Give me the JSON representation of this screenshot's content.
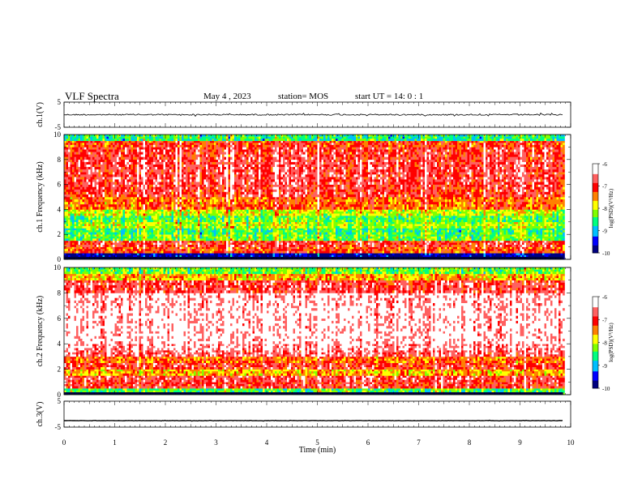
{
  "header": {
    "title": "VLF Spectra",
    "date": "May 4 , 2023",
    "station": "station= MOS",
    "start": "start UT = 14: 0 : 1"
  },
  "colors": {
    "background": "#ffffff",
    "axes": "#000000",
    "colormap": [
      "#000080",
      "#0000ff",
      "#00bfff",
      "#00ff80",
      "#80ff00",
      "#ffff00",
      "#ff8000",
      "#ff0000",
      "#ff6060",
      "#ffffff"
    ]
  },
  "chart_data": [
    {
      "type": "line",
      "panel": "ch1-waveform",
      "ylabel": "ch.1(V)",
      "yticks": [
        "5",
        "-5"
      ],
      "ylim": [
        -5,
        5
      ],
      "xlim": [
        0,
        10
      ],
      "series": [
        {
          "x": [
            0,
            9.85
          ],
          "y": [
            0,
            0
          ]
        }
      ]
    },
    {
      "type": "heatmap",
      "panel": "ch1-spectrogram",
      "ylabel": "ch.1 Frequency (kHz)",
      "yticks": [
        "0",
        "2",
        "4",
        "6",
        "8",
        "10"
      ],
      "ylim": [
        0,
        10
      ],
      "xlim": [
        0,
        10
      ],
      "data_end_min": 9.85,
      "frequency_bands_khz": [
        0,
        0.5,
        1,
        1.5,
        2,
        2.5,
        3,
        3.5,
        4,
        5,
        6,
        7,
        8,
        9,
        9.5,
        10
      ],
      "band_log_psd": [
        -9.8,
        -7.2,
        -6.9,
        -8.3,
        -8.5,
        -8.1,
        -8.4,
        -8.0,
        -7.3,
        -6.9,
        -6.8,
        -6.8,
        -6.9,
        -7.1,
        -8.6
      ],
      "colorbar": {
        "label": "log(PSD)(V²/Hz)",
        "ticks": [
          "-6",
          "-7",
          "-8",
          "-9",
          "-10"
        ],
        "range": [
          -10,
          -6
        ]
      }
    },
    {
      "type": "heatmap",
      "panel": "ch2-spectrogram",
      "ylabel": "ch.2 Frequency (kHz)",
      "yticks": [
        "0",
        "2",
        "4",
        "6",
        "8",
        "10"
      ],
      "ylim": [
        0,
        10
      ],
      "xlim": [
        0,
        10
      ],
      "data_end_min": 9.85,
      "frequency_bands_khz": [
        0,
        0.5,
        1,
        1.5,
        2,
        2.5,
        3,
        3.5,
        4,
        5,
        6,
        7,
        8,
        9,
        9.5,
        10
      ],
      "band_log_psd": [
        -8.4,
        -6.9,
        -6.8,
        -7.6,
        -6.9,
        -7.3,
        -6.6,
        -6.4,
        -6.2,
        -6.2,
        -6.2,
        -6.3,
        -6.8,
        -7.6,
        -8.3
      ],
      "colorbar": {
        "label": "log(PSD)(V²/Hz)",
        "ticks": [
          "-6",
          "-7",
          "-8",
          "-9",
          "-10"
        ],
        "range": [
          -10,
          -6
        ]
      }
    },
    {
      "type": "line",
      "panel": "ch3-waveform",
      "ylabel": "ch.3(V)",
      "yticks": [
        "5",
        "-5"
      ],
      "ylim": [
        -5,
        5
      ],
      "xlim": [
        0,
        10
      ],
      "series": [
        {
          "x": [
            0,
            9.85
          ],
          "y": [
            -2.5,
            -2.5
          ]
        }
      ]
    }
  ],
  "xaxis": {
    "label": "Time (min)",
    "ticks": [
      "0",
      "1",
      "2",
      "3",
      "4",
      "5",
      "6",
      "7",
      "8",
      "9",
      "10"
    ]
  }
}
